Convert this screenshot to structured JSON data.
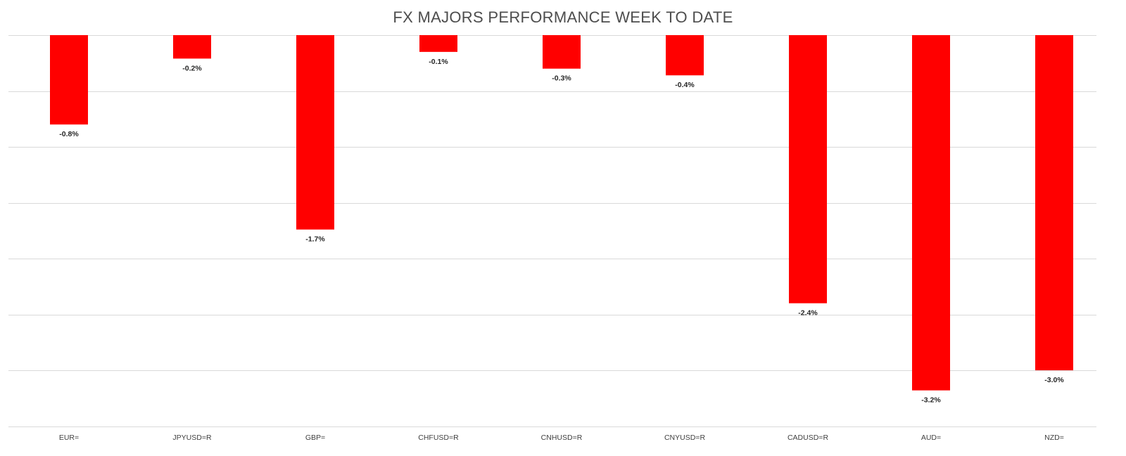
{
  "chart_data": {
    "type": "bar",
    "title": "FX MAJORS PERFORMANCE WEEK TO DATE",
    "xlabel": "",
    "ylabel": "",
    "categories": [
      "EUR=",
      "JPYUSD=R",
      "GBP=",
      "CHFUSD=R",
      "CNHUSD=R",
      "CNYUSD=R",
      "CADUSD=R",
      "AUD=",
      "NZD="
    ],
    "values": [
      -0.8,
      -0.21,
      -1.74,
      -0.15,
      -0.3,
      -0.36,
      -2.4,
      -3.18,
      -3.0
    ],
    "data_labels": [
      "-0.8%",
      "-0.2%",
      "-1.7%",
      "-0.1%",
      "-0.3%",
      "-0.4%",
      "-2.4%",
      "-3.2%",
      "-3.0%"
    ],
    "ylim": [
      -3.5,
      0
    ],
    "grid": true,
    "legend": "none",
    "bar_color": "#ff0000"
  }
}
